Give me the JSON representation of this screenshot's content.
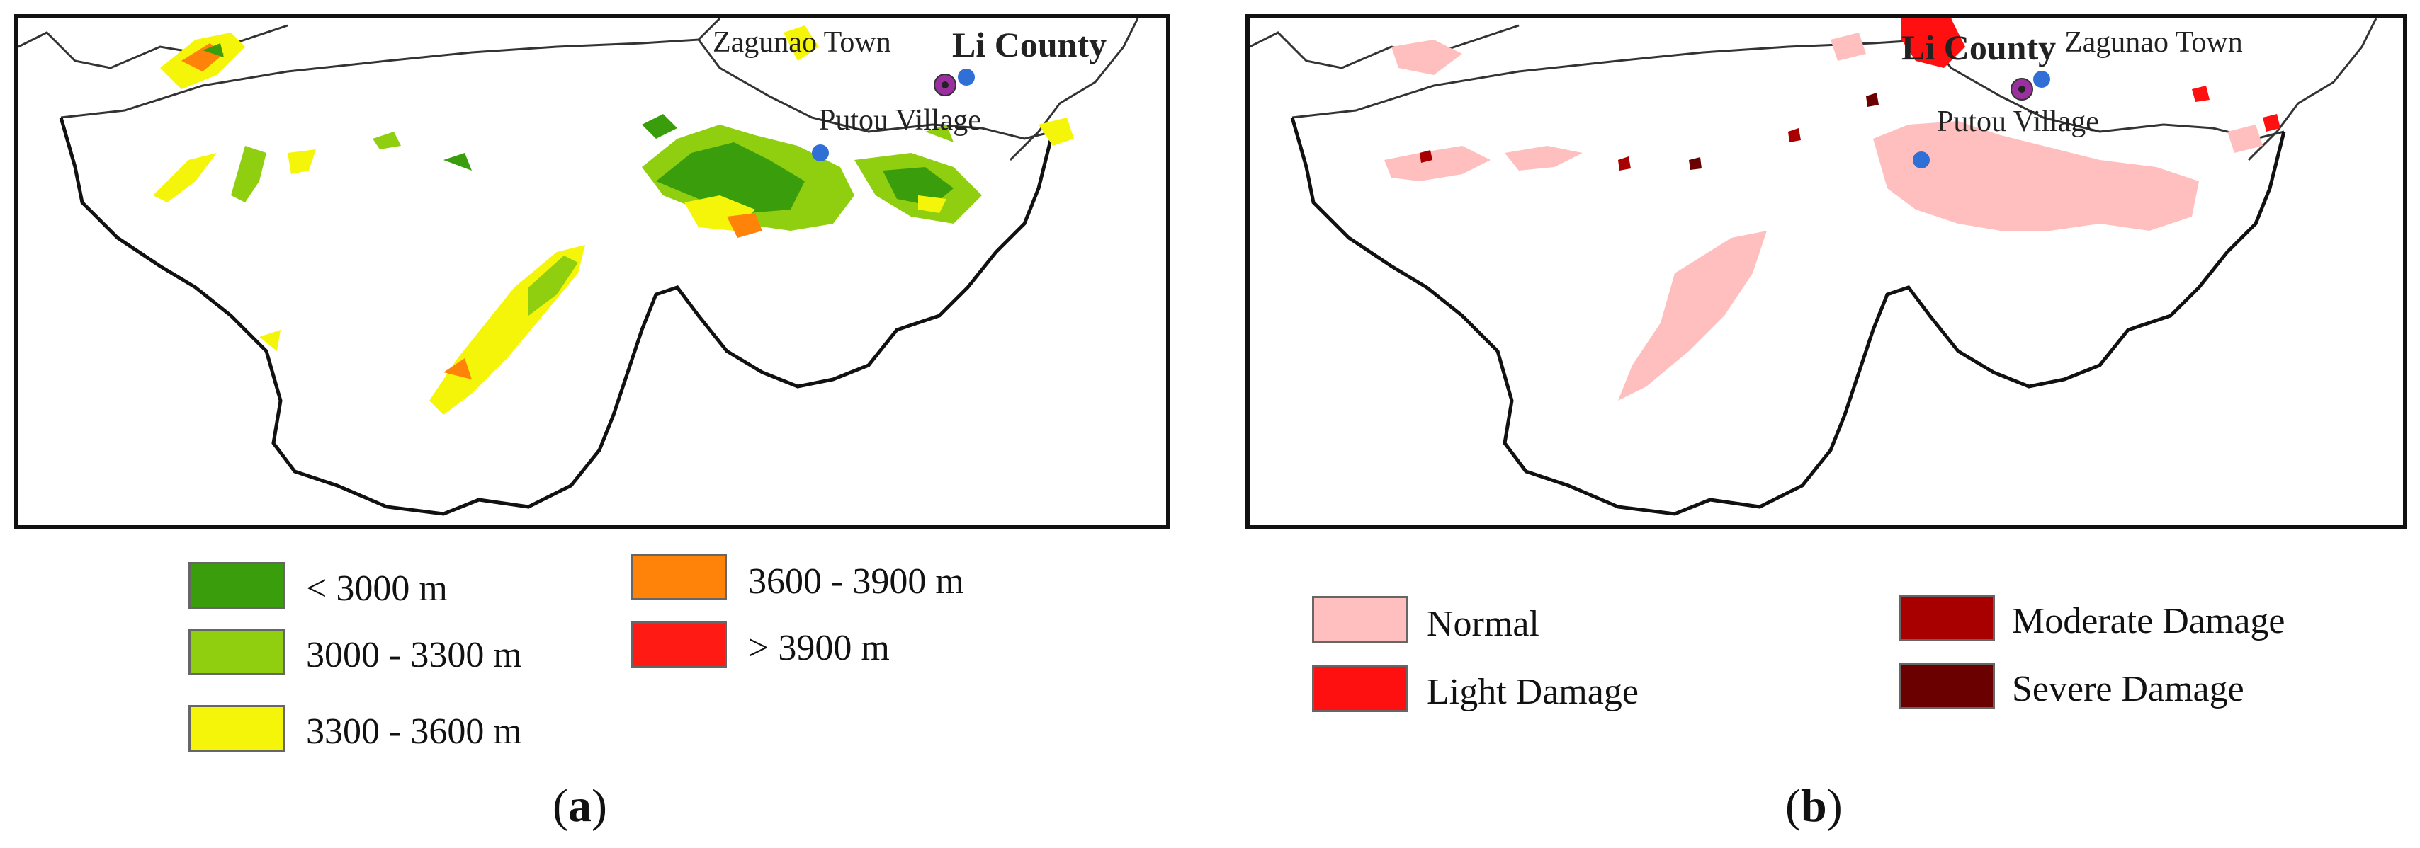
{
  "panel_a": {
    "places": {
      "zagunao": "Zagunao Town",
      "li_county": "Li County",
      "putou": "Putou Village"
    },
    "legend": [
      {
        "label": "< 3000 m",
        "color": "#3a9e0c"
      },
      {
        "label": "3000 - 3300 m",
        "color": "#8fcf0f"
      },
      {
        "label": "3300 - 3600 m",
        "color": "#f5f50a"
      },
      {
        "label": "3600 - 3900 m",
        "color": "#ff8209"
      },
      {
        "label": "> 3900 m",
        "color": "#ff1a14"
      }
    ],
    "caption": {
      "open": "(",
      "letter": "a",
      "close": ")"
    }
  },
  "panel_b": {
    "places": {
      "li_county": "Li County",
      "zagunao": "Zagunao Town",
      "putou": "Putou Village"
    },
    "legend": [
      {
        "label": "Normal",
        "color": "#ffbfbf"
      },
      {
        "label": "Light Damage",
        "color": "#ff1010"
      },
      {
        "label": "Moderate Damage",
        "color": "#a80000"
      },
      {
        "label": "Severe Damage",
        "color": "#6b0000"
      }
    ],
    "caption": {
      "open": "(",
      "letter": "b",
      "close": ")"
    }
  },
  "colors": {
    "county_marker": "#9b2fa0",
    "town_marker": "#2f6fd6",
    "boundary": "#111111"
  }
}
